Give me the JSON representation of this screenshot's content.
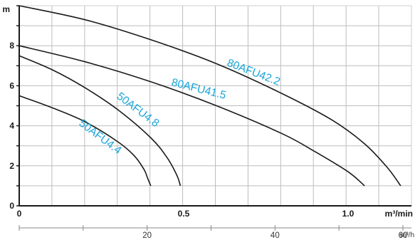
{
  "chart_data": {
    "type": "line",
    "title": "",
    "ylabel": "m",
    "xlabel": "m³/min",
    "secondary_xlabel": "m³/h",
    "ylim": [
      0,
      10
    ],
    "xlim": [
      0,
      1.2
    ],
    "secondary_xlim": [
      0,
      72
    ],
    "grid": true,
    "y_ticks": [
      "0",
      "2",
      "4",
      "6",
      "8"
    ],
    "x_ticks": [
      "0",
      "0.5",
      "1.0"
    ],
    "secondary_x_ticks": [
      "20",
      "40",
      "60"
    ],
    "colors": {
      "curve": "#1a1a1a",
      "label": "#1aa6d8",
      "grid": "#bdbdbd",
      "axis": "#1a1a1a"
    },
    "series": [
      {
        "name": "50AFU4.4",
        "x": [
          0,
          0.1,
          0.2,
          0.3,
          0.35,
          0.38,
          0.39,
          0.4
        ],
        "y": [
          5.5,
          4.9,
          4.2,
          3.2,
          2.5,
          1.8,
          1.4,
          1.0
        ]
      },
      {
        "name": "50AFU4.8",
        "x": [
          0,
          0.1,
          0.2,
          0.3,
          0.4,
          0.45,
          0.48,
          0.49
        ],
        "y": [
          7.5,
          6.8,
          5.9,
          4.8,
          3.4,
          2.4,
          1.5,
          1.0
        ]
      },
      {
        "name": "80AFU41.5",
        "x": [
          0,
          0.2,
          0.4,
          0.6,
          0.8,
          0.9,
          1.0,
          1.05
        ],
        "y": [
          8.0,
          7.2,
          6.2,
          5.0,
          3.6,
          2.7,
          1.7,
          1.0
        ]
      },
      {
        "name": "80AFU42.2",
        "x": [
          0,
          0.2,
          0.4,
          0.6,
          0.8,
          0.95,
          1.05,
          1.12,
          1.16
        ],
        "y": [
          10.0,
          9.3,
          8.3,
          7.1,
          5.6,
          4.3,
          3.1,
          1.9,
          1.0
        ]
      }
    ]
  }
}
